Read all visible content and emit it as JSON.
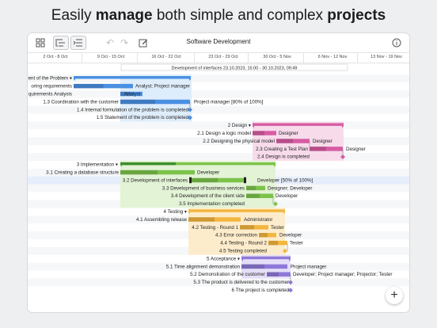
{
  "headline": {
    "part1": "Easily ",
    "bold1": "manage",
    "part2": " both simple and complex ",
    "bold2": "projects"
  },
  "toolbar": {
    "title": "Software Development",
    "icons": [
      "grid-icon",
      "outline-icon",
      "indent-icon",
      "undo-icon",
      "redo-icon",
      "edit-icon",
      "info-icon"
    ]
  },
  "timescale": {
    "weeks": [
      "2 Oct - 8 Oct",
      "9 Oct - 15 Oct",
      "16 Oct - 22 Oct",
      "23 Oct - 29 Oct",
      "30 Oct - 5 Nov",
      "6 Nov - 12 Nov",
      "13 Nov - 19 Nov"
    ]
  },
  "interval_label": "Development of interfaces  23.10.2023, 15:00 - 30.10.2023, 09:49",
  "colors": {
    "phase1": "#4a90e2",
    "phase1_light": "#dcebfb",
    "phase2": "#d65da3",
    "phase2_light": "#f7dbeb",
    "phase3": "#7cc34a",
    "phase3_dark": "#3f8f2d",
    "phase3_light": "#e3f3d6",
    "phase4": "#f3b63f",
    "phase4_light": "#fdeccb",
    "phase5": "#8f79d8",
    "phase5_light": "#e5def8"
  },
  "tasks": [
    {
      "name": "ent of the Problem",
      "summary": true,
      "resource": ""
    },
    {
      "name": "oring requirements",
      "summary": false,
      "resource": "Analyst; Project manager"
    },
    {
      "name": "quirements Analysis",
      "summary": false,
      "resource": "Analyst"
    },
    {
      "name": "1.3  Coordination with the customer",
      "summary": false,
      "resource": "Project manager [80% of 100%]"
    },
    {
      "name": "1.4  Internal formulation of the problem is completed",
      "summary": false,
      "resource": ""
    },
    {
      "name": "1.5  Statement of the problem is completed",
      "summary": false,
      "resource": ""
    },
    {
      "name": "2  Design",
      "summary": true,
      "resource": ""
    },
    {
      "name": "2.1  Design a logic model",
      "summary": false,
      "resource": "Designer"
    },
    {
      "name": "2.2  Designing the physical model",
      "summary": false,
      "resource": "Designer"
    },
    {
      "name": "2.3  Creating a Test Plan",
      "summary": false,
      "resource": "Designer"
    },
    {
      "name": "2.4  Design is completed",
      "summary": false,
      "resource": ""
    },
    {
      "name": "3  Implementation",
      "summary": true,
      "resource": ""
    },
    {
      "name": "3.1  Creating a database structure",
      "summary": false,
      "resource": "Developer"
    },
    {
      "name": "3.2  Development of interfaces",
      "summary": false,
      "resource": "Developer [50% of 100%]"
    },
    {
      "name": "3.3  Development of business services",
      "summary": false,
      "resource": "Designer; Developer"
    },
    {
      "name": "3.4  Development of the client side",
      "summary": false,
      "resource": "Developer"
    },
    {
      "name": "3.5  Implementation completed",
      "summary": false,
      "resource": ""
    },
    {
      "name": "4  Testing",
      "summary": true,
      "resource": ""
    },
    {
      "name": "4.1  Assembling release",
      "summary": false,
      "resource": "Administrator"
    },
    {
      "name": "4.2  Testing - Round 1",
      "summary": false,
      "resource": "Tester"
    },
    {
      "name": "4.3  Error correction",
      "summary": false,
      "resource": "Developer"
    },
    {
      "name": "4.4  Testing - Round 2",
      "summary": false,
      "resource": "Tester"
    },
    {
      "name": "4.5  Testing completed",
      "summary": false,
      "resource": ""
    },
    {
      "name": "5  Acceptance",
      "summary": true,
      "resource": ""
    },
    {
      "name": "5.1  Time alignment demonstration",
      "summary": false,
      "resource": "Project manager"
    },
    {
      "name": "5.2  Demonstration of the customer",
      "summary": false,
      "resource": "Developer; Project manager; Projector; Tester"
    },
    {
      "name": "5.3  The product is delivered to the customer",
      "summary": false,
      "resource": ""
    },
    {
      "name": "6  The project is completed",
      "summary": false,
      "resource": ""
    }
  ]
}
